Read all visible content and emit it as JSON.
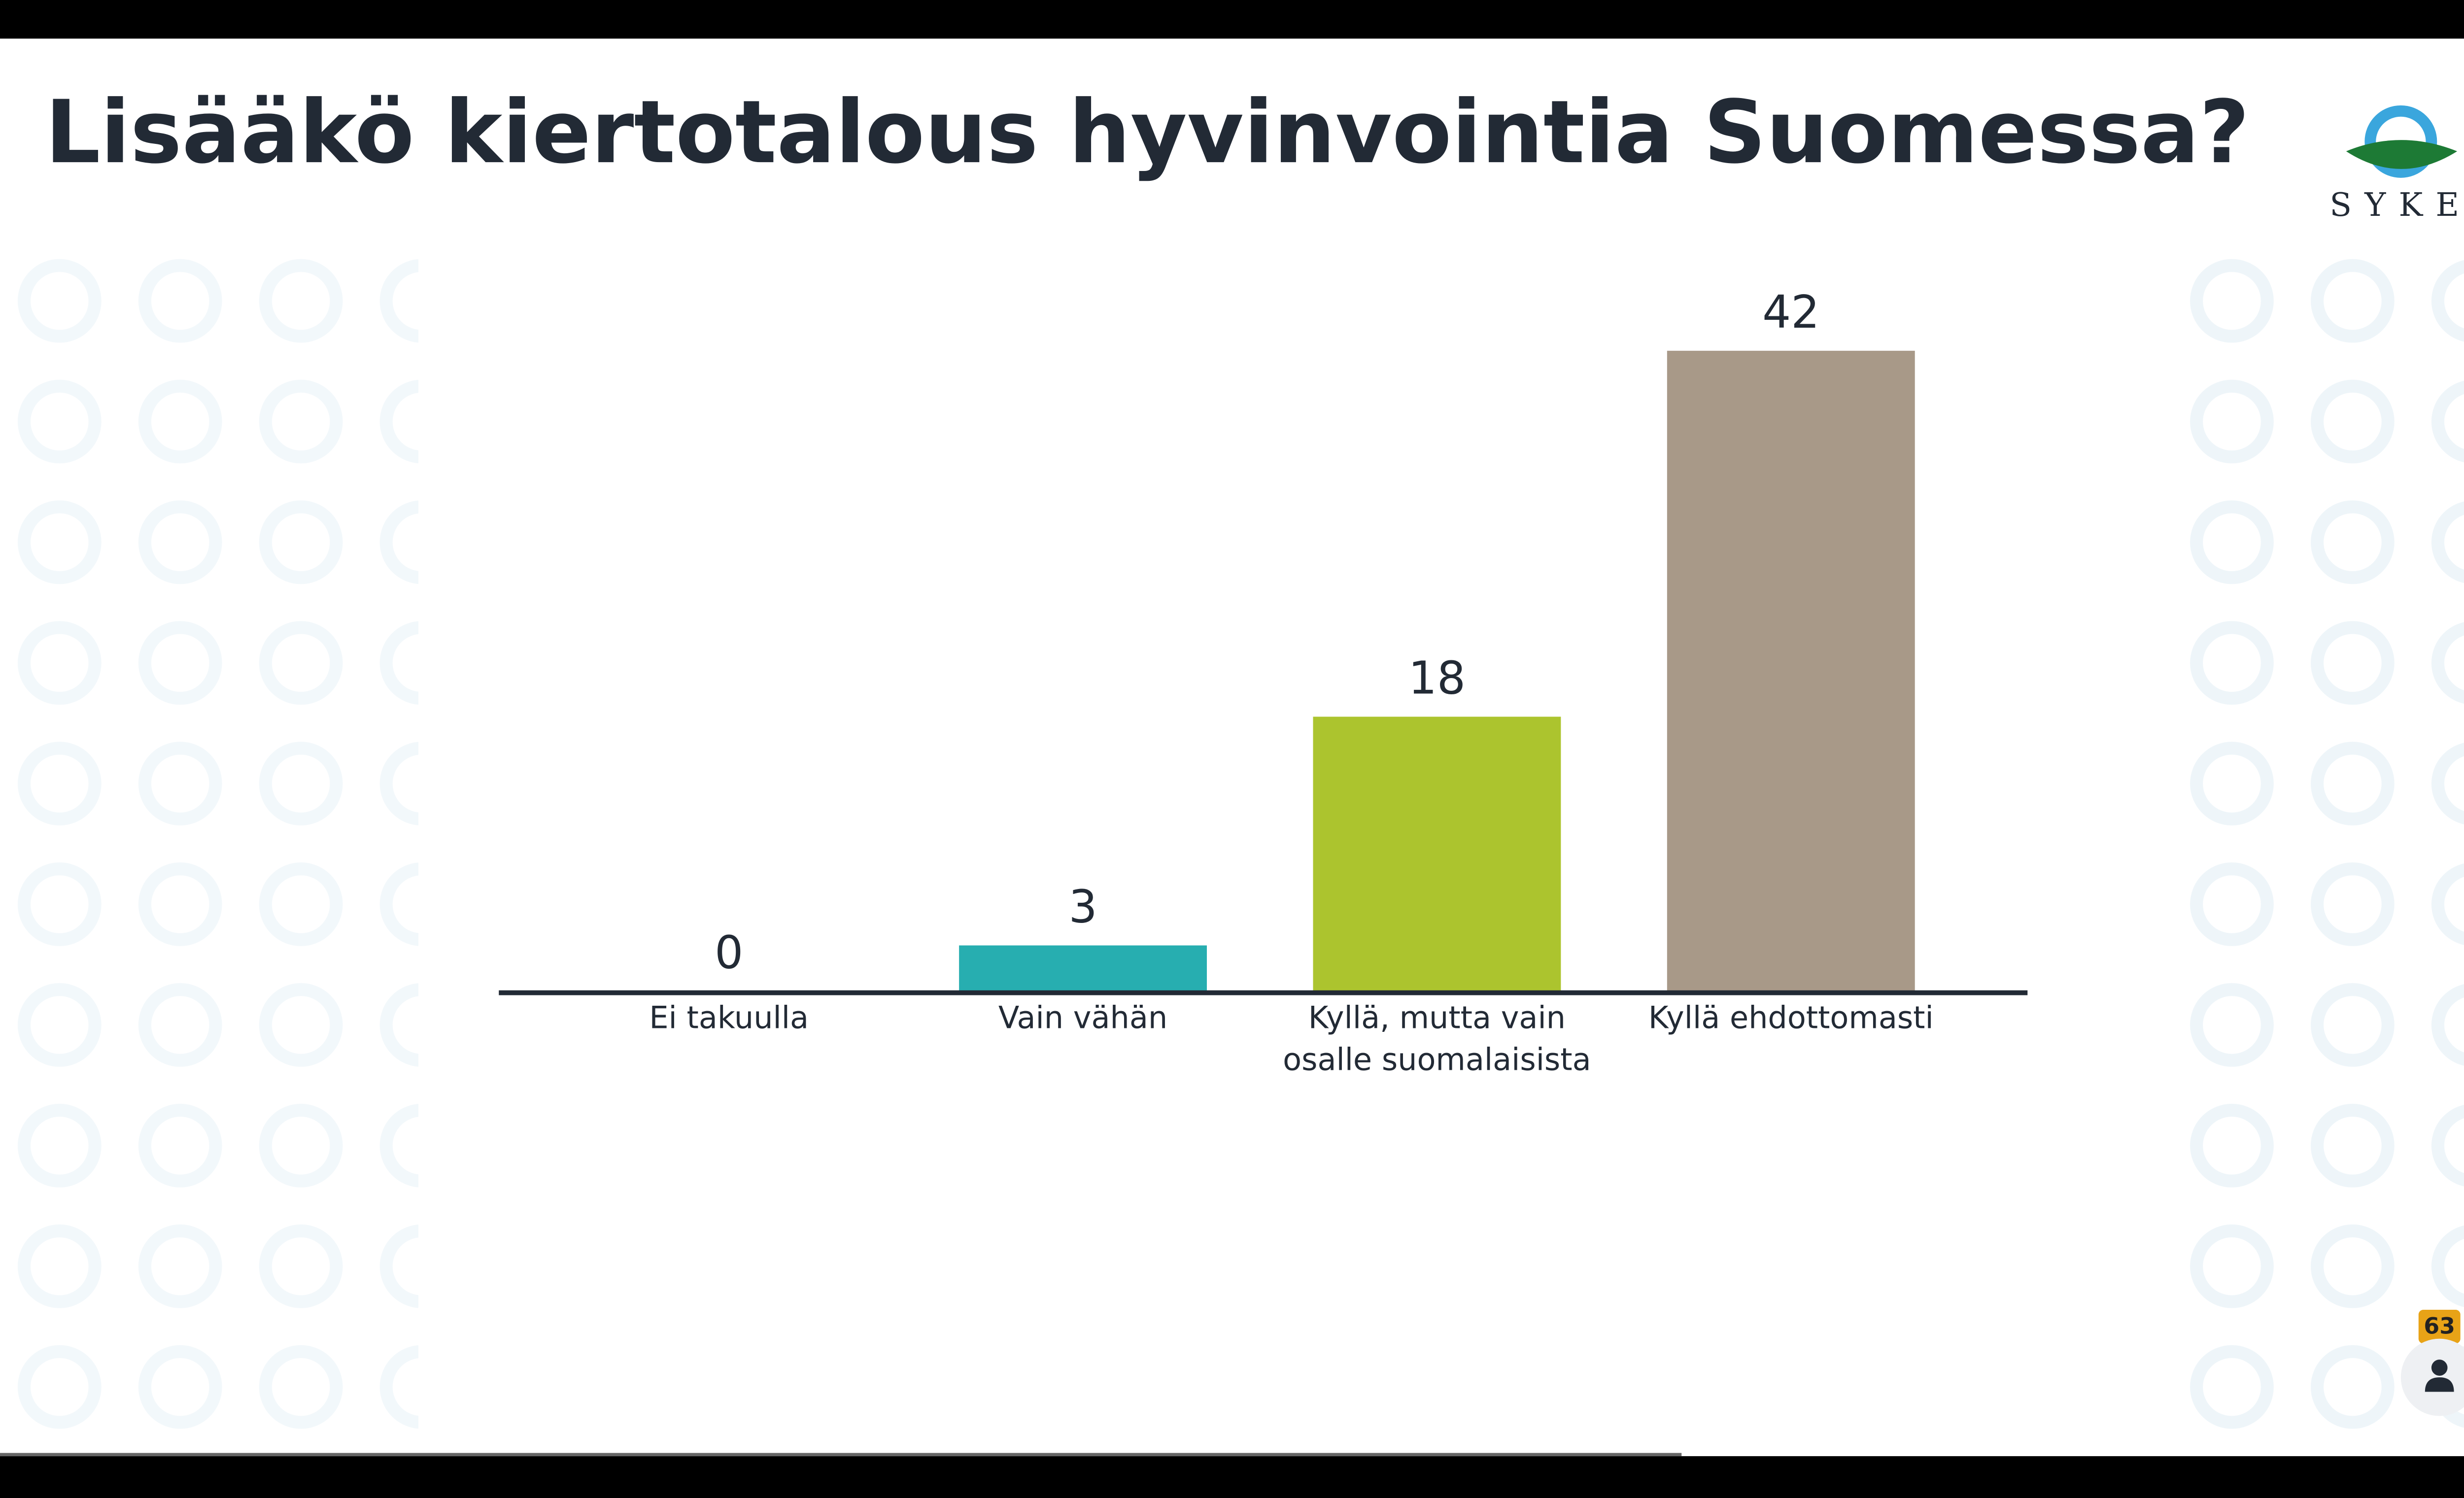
{
  "title": "Lisääkö kiertotalous hyvinvointia Suomessa?",
  "logo": "SYKE",
  "participants": "63",
  "chart_data": {
    "type": "bar",
    "categories": [
      "Ei takuulla",
      "Vain vähän",
      "Kyllä, mutta vain osalle suomalaisista",
      "Kyllä ehdottomasti"
    ],
    "values": [
      0,
      3,
      18,
      42
    ],
    "colors": [
      "#2f5d8a",
      "#27aeb0",
      "#acc42e",
      "#a89988"
    ]
  }
}
